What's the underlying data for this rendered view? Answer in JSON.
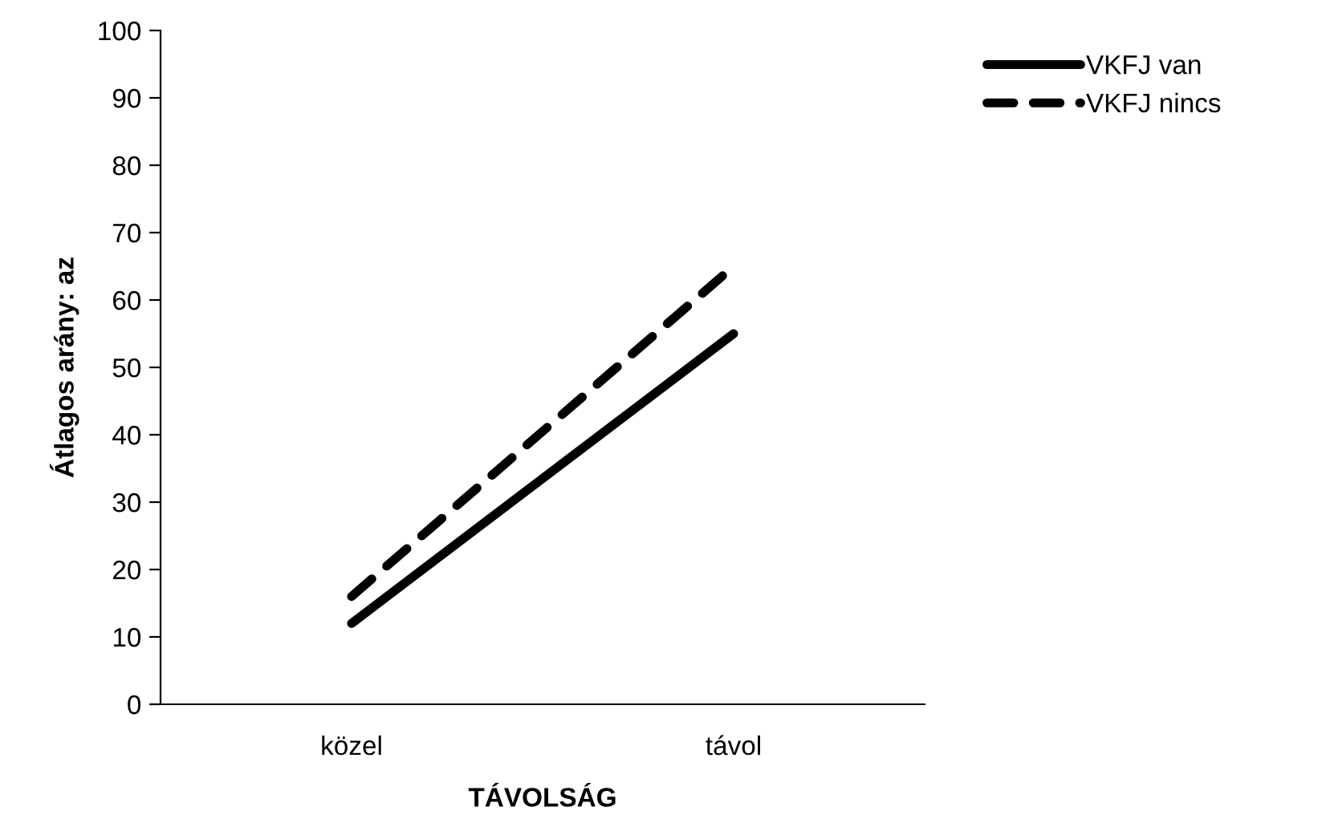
{
  "chart_data": {
    "type": "line",
    "xlabel": "TÁVOLSÁG",
    "ylabel": "Átlagos arány: az",
    "categories": [
      "közel",
      "távol"
    ],
    "series": [
      {
        "name": "VKFJ van",
        "color": "#000000",
        "values": [
          12,
          55
        ],
        "line_style": "solid"
      },
      {
        "name": "VKFJ nincs",
        "color": "#000000",
        "values": [
          16,
          65
        ],
        "line_style": "dashed"
      }
    ],
    "ylim": [
      0,
      100
    ],
    "yticks": [
      0,
      10,
      20,
      30,
      40,
      50,
      60,
      70,
      80,
      90,
      100
    ],
    "grid": false,
    "legend": "top right",
    "marker": "none"
  }
}
